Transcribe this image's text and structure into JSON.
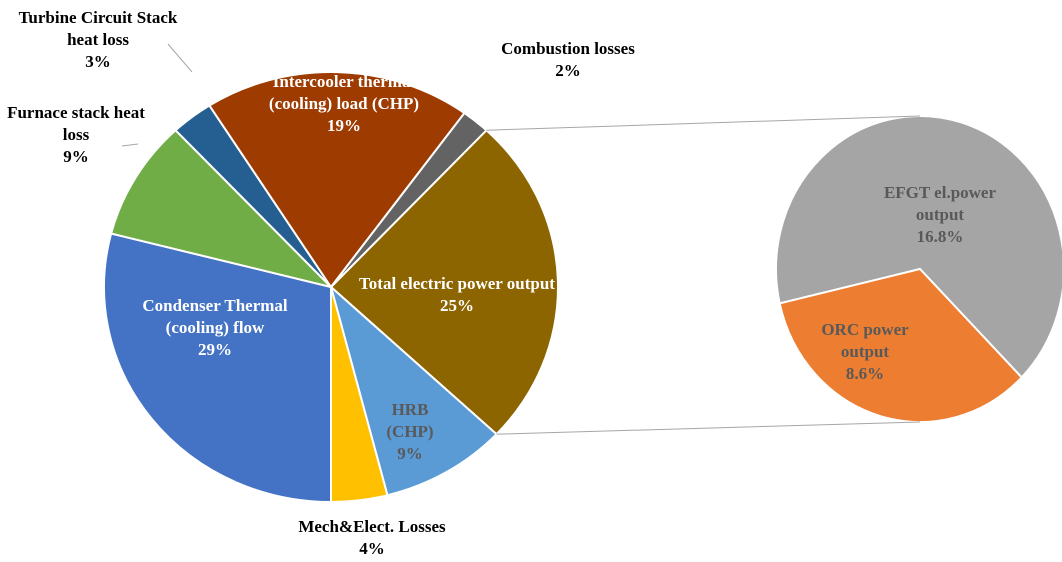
{
  "chart_data": {
    "type": "pie",
    "categories": [
      "Total electric power output",
      "HRB (CHP)",
      "Mech&Elect. Losses",
      "Condenser Thermal (cooling) flow",
      "Furnace stack heat loss",
      "Turbine Circuit Stack heat loss",
      "Intercooler thermal (cooling) load (CHP)",
      "Combustion losses"
    ],
    "values": [
      25,
      9,
      4,
      29,
      9,
      3,
      19,
      2
    ],
    "value_labels": [
      "25%",
      "9%",
      "4%",
      "29%",
      "9%",
      "3%",
      "19%",
      "2%"
    ],
    "colors": [
      "#8c6400",
      "#5b9bd5",
      "#ffc000",
      "#4472c4",
      "#70ad47",
      "#255e91",
      "#9e3b00",
      "#636363"
    ],
    "secondary": {
      "categories": [
        "EFGT el.power output",
        "ORC power output"
      ],
      "values": [
        16.8,
        8.6
      ],
      "value_labels": [
        "16.8%",
        "8.6%"
      ],
      "colors": [
        "#a5a5a5",
        "#ed7d31"
      ]
    }
  }
}
